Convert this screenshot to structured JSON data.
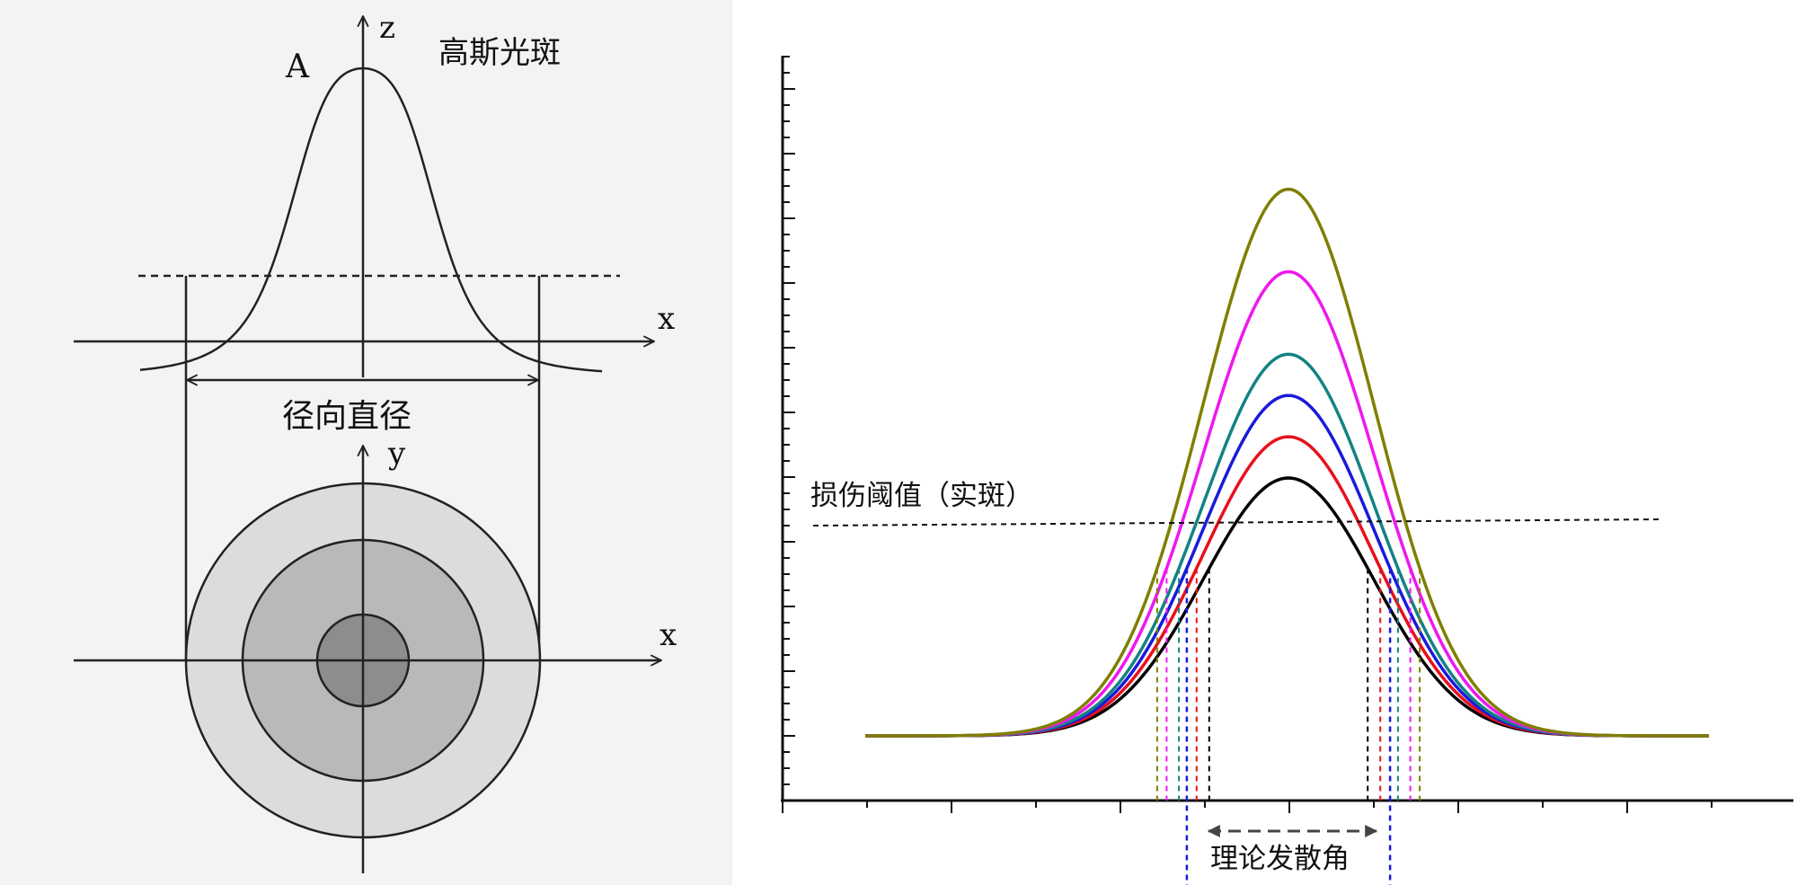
{
  "left_panel": {
    "label_z": "z",
    "label_A": "A",
    "title": "高斯光斑",
    "label_x_top": "x",
    "diameter_label": "径向直径",
    "label_y": "y",
    "label_x_bottom": "x"
  },
  "right_panel": {
    "threshold_label": "损伤阈值（实斑）",
    "divergence_label": "理论发散角",
    "curve_colors": [
      "#000000",
      "#e8101c",
      "#1a1adc",
      "#148282",
      "#ee18ee",
      "#7f7f00"
    ],
    "curve_peaks": [
      1.0,
      1.16,
      1.32,
      1.48,
      1.8,
      2.12
    ],
    "threshold_level": 0.65,
    "divergence_color": "#1a1adc"
  }
}
